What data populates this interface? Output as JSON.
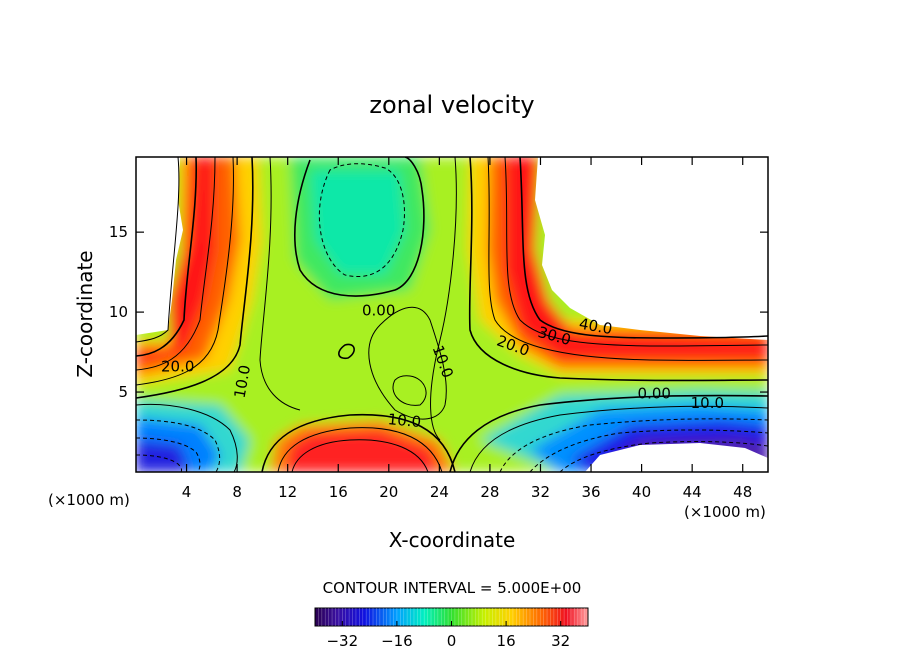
{
  "chart_data": {
    "type": "heatmap",
    "title": "zonal velocity",
    "xlabel": "X-coordinate",
    "ylabel": "Z-coordinate",
    "x_unit_label": "(×1000 m)",
    "x_unit_label_right": "(×1000 m)",
    "xlim": [
      0,
      50
    ],
    "ylim": [
      0,
      19.7
    ],
    "x_ticks": [
      4,
      8,
      12,
      16,
      20,
      24,
      28,
      32,
      36,
      40,
      44,
      48
    ],
    "x_tick_labels": [
      "4",
      "8",
      "12",
      "16",
      "20",
      "24",
      "28",
      "32",
      "36",
      "40",
      "44",
      "48"
    ],
    "y_ticks": [
      5,
      10,
      15
    ],
    "y_tick_labels": [
      "5",
      "10",
      "15"
    ],
    "contour_interval_text": "CONTOUR INTERVAL = 5.000E+00",
    "colorbar": {
      "range": [
        -40,
        40
      ],
      "ticks": [
        -32,
        -16,
        0,
        16,
        32
      ],
      "tick_labels": [
        "−32",
        "−16",
        "0",
        "16",
        "32"
      ]
    },
    "contour_labels": [
      {
        "text": "0.00",
        "x": 19.2,
        "y": 9.8
      },
      {
        "text": "20.0",
        "x": 3.3,
        "y": 6.3
      },
      {
        "text": "10.0",
        "x": 8.8,
        "y": 5.6,
        "rotate": -80
      },
      {
        "text": "10.0",
        "x": 23.9,
        "y": 6.8,
        "rotate": 70
      },
      {
        "text": "20.0",
        "x": 29.7,
        "y": 7.6,
        "rotate": 20
      },
      {
        "text": "30.0",
        "x": 33.0,
        "y": 8.2,
        "rotate": 15
      },
      {
        "text": "40.0",
        "x": 36.3,
        "y": 8.8,
        "rotate": 10
      },
      {
        "text": "0.00",
        "x": 41.0,
        "y": 4.6
      },
      {
        "text": "10.0",
        "x": 45.2,
        "y": 4.0
      },
      {
        "text": "10.0",
        "x": 21.2,
        "y": 2.9,
        "rotate": 5
      }
    ],
    "blank_regions": [
      {
        "name": "upper-left",
        "x_range": [
          0,
          3.5
        ],
        "z_range": [
          8.7,
          19.7
        ]
      },
      {
        "name": "upper-right",
        "x_range": [
          31.5,
          50
        ],
        "z_range": [
          8.5,
          19.7
        ]
      },
      {
        "name": "lower-right",
        "x_range": [
          36,
          49
        ],
        "z_range": [
          0,
          1.7
        ]
      }
    ],
    "grid": false
  }
}
